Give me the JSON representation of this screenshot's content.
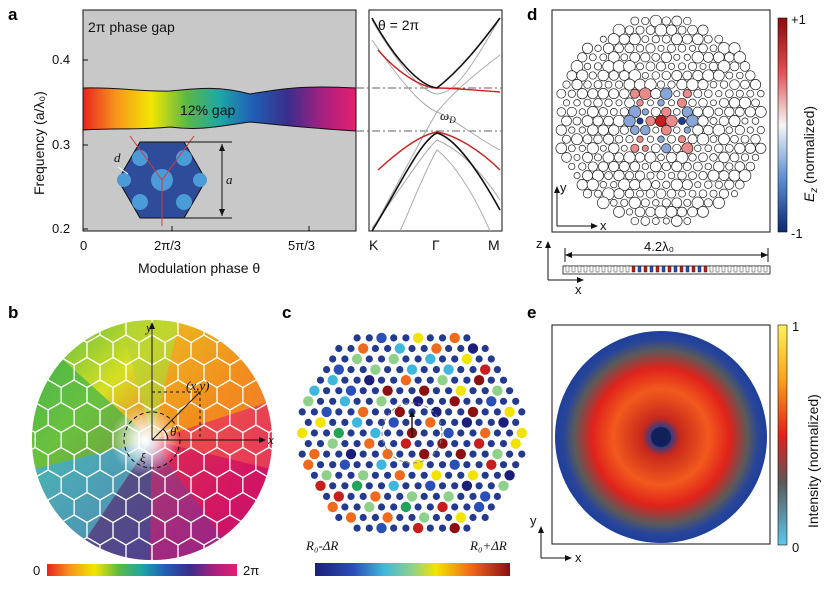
{
  "panels": {
    "a": "a",
    "b": "b",
    "c": "c",
    "d": "d",
    "e": "e"
  },
  "panel_a": {
    "inset_title": "2π phase gap",
    "gap_label": "12% gap",
    "ylabel": "Frequency (a/λ₀)",
    "xlabel": "Modulation phase θ",
    "yticks": [
      "0.4",
      "0.3",
      "0.2"
    ],
    "xticks": [
      "0",
      "2π/3",
      "5π/3"
    ],
    "unit_cell_d": "d",
    "unit_cell_a": "a",
    "band_title": "θ = 2π",
    "band_xticks": [
      "K",
      "Γ",
      "M"
    ],
    "dirac": "ω",
    "dirac_sub": "D"
  },
  "panel_b": {
    "axis_x": "x",
    "axis_y": "y",
    "point": "(x,y)",
    "theta": "θ",
    "xi": "ξ",
    "cbar_min": "0",
    "cbar_max": "2π"
  },
  "panel_c": {
    "cbar_min": "R₀-ΔR",
    "cbar_max": "R₀+ΔR"
  },
  "panel_d": {
    "cbar_top": "+1",
    "cbar_bottom": "-1",
    "cbar_label": "E_z (normalized)",
    "axis_x": "x",
    "axis_y": "y",
    "axis_z": "z",
    "width_label": "4.2λ₀"
  },
  "panel_e": {
    "cbar_top": "1",
    "cbar_bottom": "0",
    "cbar_label": "Intensity (normalized)",
    "axis_x": "x",
    "axis_y": "y"
  },
  "chart_data": [
    {
      "type": "line",
      "title": "2π phase gap",
      "xlabel": "Modulation phase θ",
      "ylabel": "Frequency (a/λ₀)",
      "xlim": [
        0,
        6.283
      ],
      "ylim": [
        0.19,
        0.45
      ],
      "annotations": [
        "12% gap"
      ],
      "series": [
        {
          "x": [
            0,
            1.05,
            2.09,
            3.14,
            4.19,
            5.24,
            6.28
          ],
          "values": [
            0.362,
            0.358,
            0.364,
            0.352,
            0.364,
            0.358,
            0.362
          ]
        },
        {
          "x": [
            0,
            1.05,
            2.09,
            3.14,
            4.19,
            5.24,
            6.28
          ],
          "values": [
            0.318,
            0.322,
            0.316,
            0.326,
            0.316,
            0.322,
            0.318
          ]
        }
      ]
    },
    {
      "type": "line",
      "title": "θ = 2π",
      "categories": [
        "K",
        "Γ",
        "M"
      ],
      "ylim": [
        0.19,
        0.45
      ]
    }
  ]
}
